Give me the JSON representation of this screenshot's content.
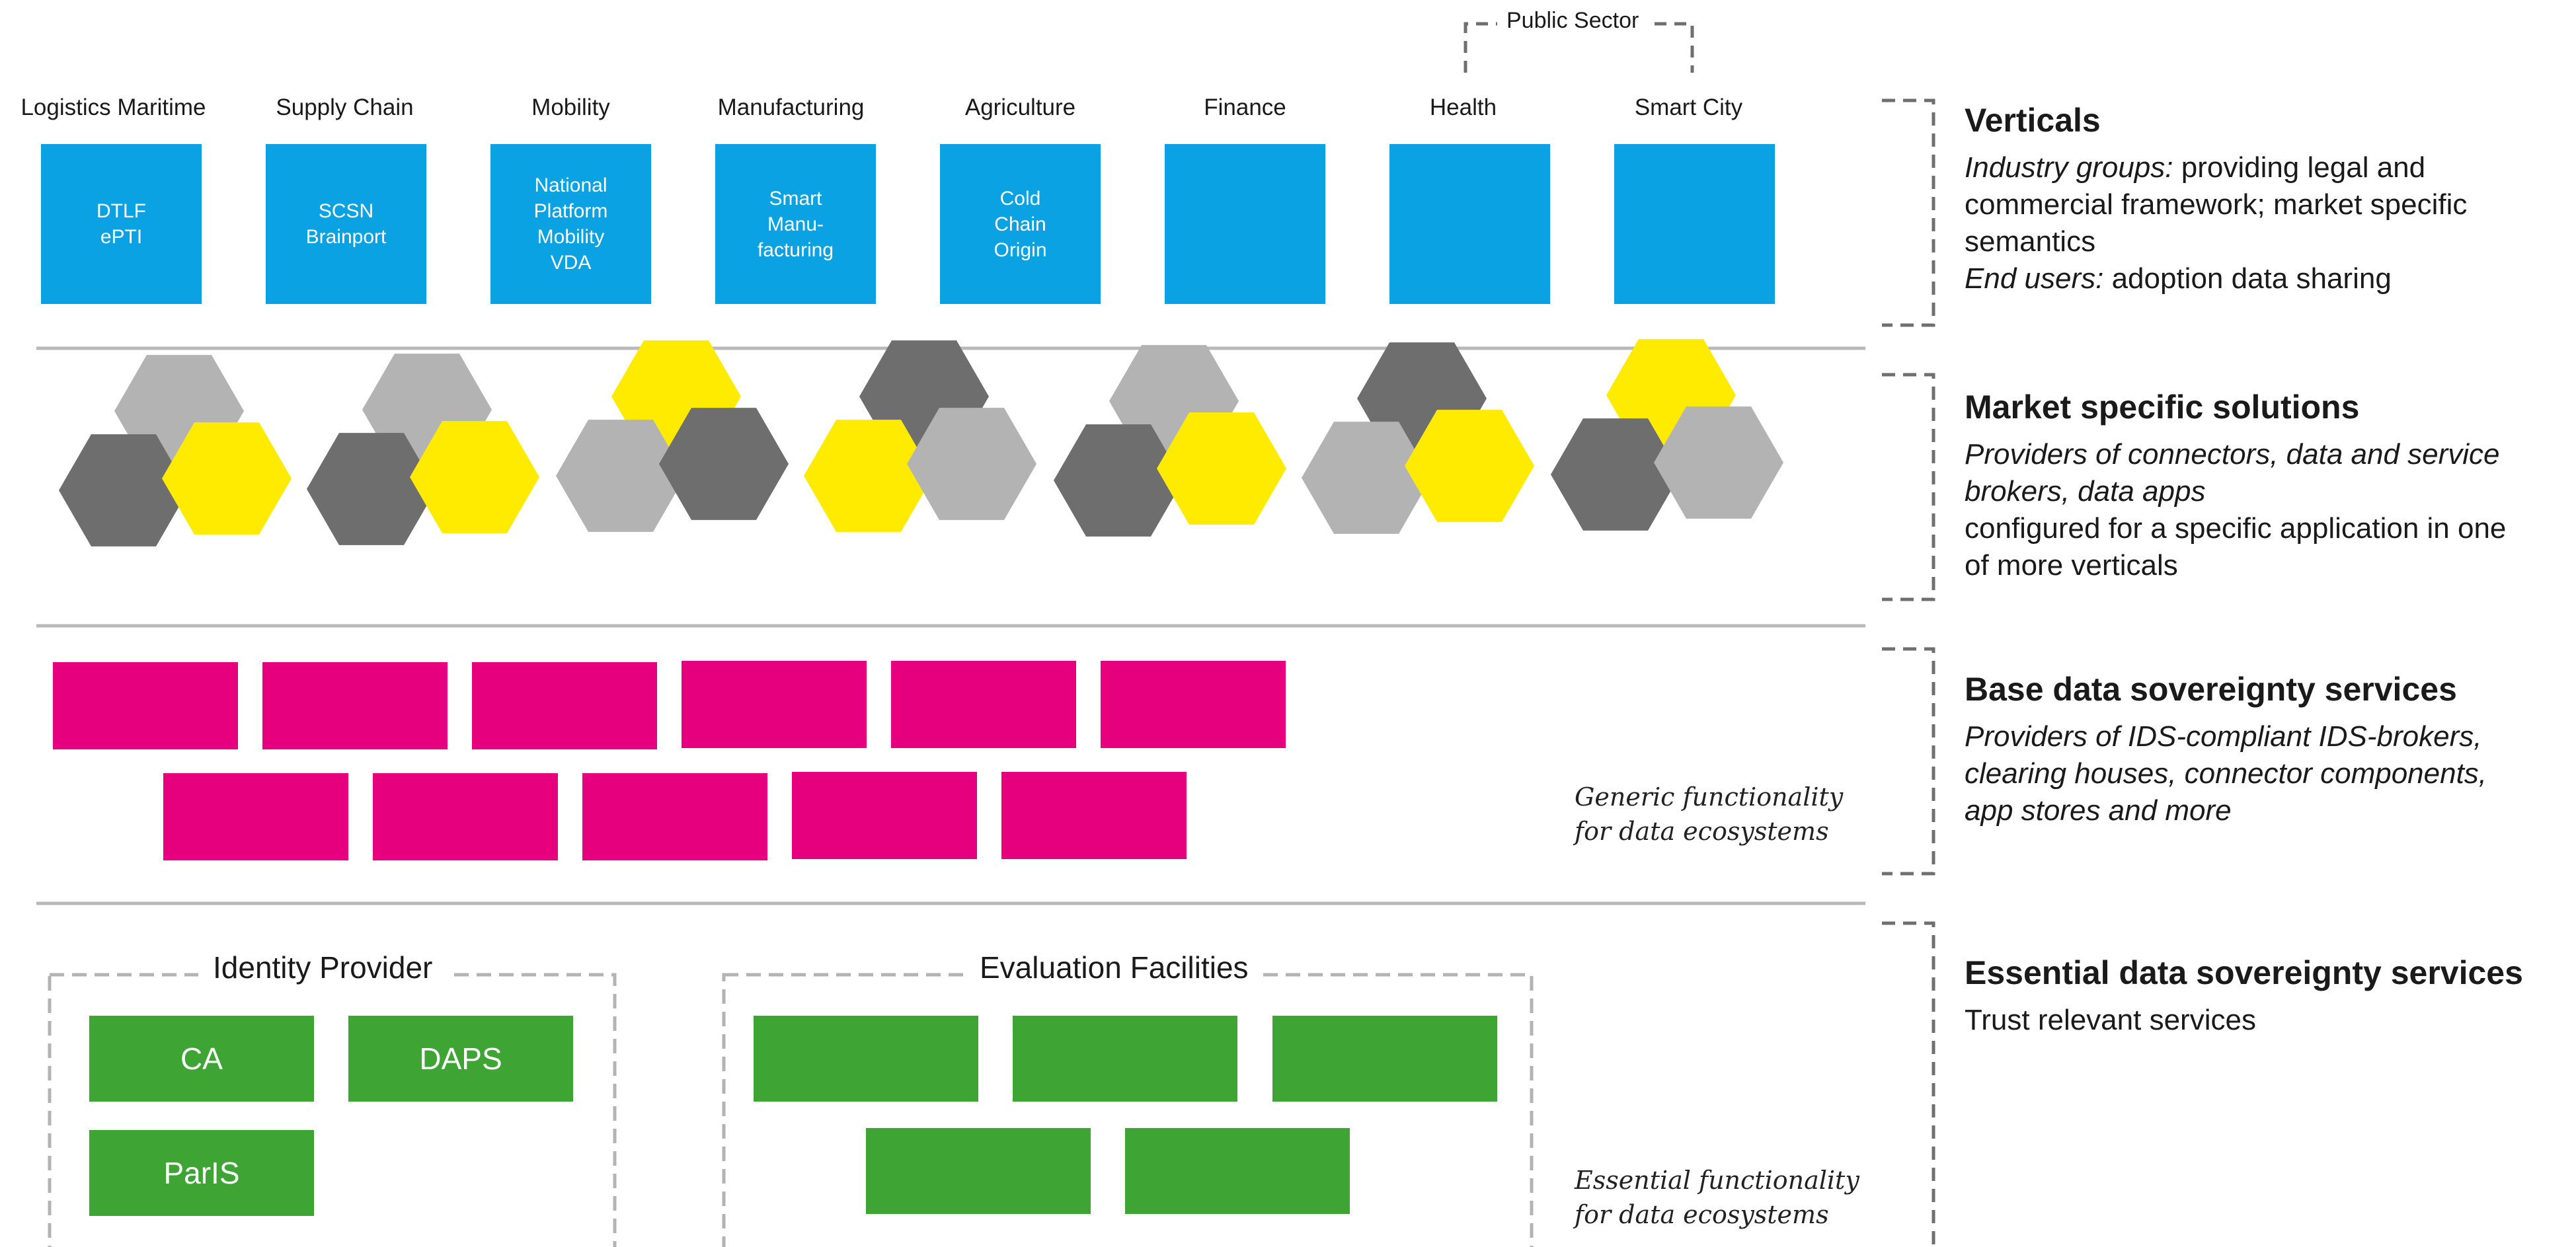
{
  "verticals": {
    "public_sector_label": "Public Sector",
    "columns": [
      {
        "label": "Logistics Maritime",
        "box_text": "DTLF\nePTI"
      },
      {
        "label": "Supply Chain",
        "box_text": "SCSN\nBrainport"
      },
      {
        "label": "Mobility",
        "box_text": "National\nPlatform\nMobility\nVDA"
      },
      {
        "label": "Manufacturing",
        "box_text": "Smart\nManu-\nfacturing"
      },
      {
        "label": "Agriculture",
        "box_text": "Cold\nChain\nOrigin"
      },
      {
        "label": "Finance",
        "box_text": ""
      },
      {
        "label": "Health",
        "box_text": ""
      },
      {
        "label": "Smart City",
        "box_text": ""
      }
    ]
  },
  "colors": {
    "blue": "#0aa2e3",
    "yellow": "#ffeb00",
    "light_gray": "#b3b3b3",
    "dark_gray": "#6e6e6e",
    "magenta": "#e6007e",
    "green": "#3ea535",
    "divider": "#b9b9b9",
    "bracket": "#6f6f6f"
  },
  "hex_clusters": [
    {
      "top": "light_gray",
      "left": "dark_gray",
      "right": "yellow",
      "front": "right"
    },
    {
      "top": "light_gray",
      "left": "dark_gray",
      "right": "yellow",
      "front": "right"
    },
    {
      "top": "yellow",
      "left": "light_gray",
      "right": "dark_gray",
      "front": "right"
    },
    {
      "top": "dark_gray",
      "left": "yellow",
      "right": "light_gray",
      "front": "right"
    },
    {
      "top": "light_gray",
      "left": "dark_gray",
      "right": "yellow",
      "front": "right"
    },
    {
      "top": "dark_gray",
      "left": "light_gray",
      "right": "yellow",
      "front": "right"
    },
    {
      "top": "yellow",
      "left": "dark_gray",
      "right": "light_gray",
      "front": "right"
    }
  ],
  "base_services": {
    "note_line1": "Generic functionality",
    "note_line2": "for data ecosystems"
  },
  "essential": {
    "identity_provider": {
      "title": "Identity Provider",
      "boxes": [
        "CA",
        "DAPS",
        "ParIS"
      ]
    },
    "evaluation_facilities": {
      "title": "Evaluation Facilities"
    },
    "note_line1": "Essential functionality",
    "note_line2": "for data ecosystems"
  },
  "right_panel": {
    "verticals": {
      "title": "Verticals",
      "line1_italic": "Industry groups:",
      "line1_rest": " providing legal and",
      "line2": "commercial framework; market specific",
      "line3": "semantics",
      "line4_italic": "End users:",
      "line4_rest": " adoption data sharing"
    },
    "market": {
      "title": "Market specific solutions",
      "line1_italic": "Providers of connectors, data and service",
      "line2_italic": "brokers, data apps",
      "line3": "configured for a specific application in one",
      "line4": "of more verticals"
    },
    "base": {
      "title": "Base data sovereignty services",
      "line1_italic": "Providers of IDS-compliant IDS-brokers,",
      "line2_italic": "clearing houses, connector components,",
      "line3_italic": "app stores and more"
    },
    "essential": {
      "title": "Essential data sovereignty services",
      "line1": "Trust relevant services"
    }
  }
}
